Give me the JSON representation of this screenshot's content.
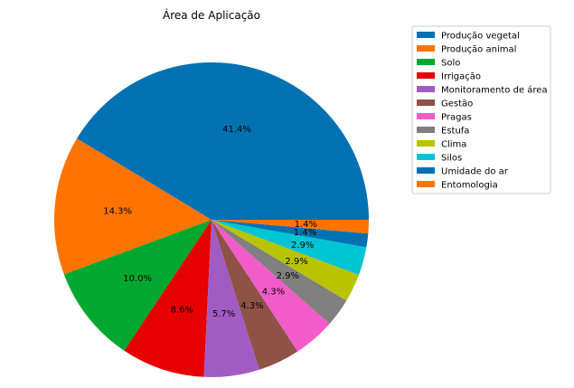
{
  "chart_data": {
    "type": "pie",
    "title": "Área de Aplicação",
    "legend_position": "top-right",
    "start_angle_deg": 0,
    "direction": "counterclockwise-from-right",
    "slices": [
      {
        "label": "Produção vegetal",
        "value": 41.4,
        "pct_label": "41.4%",
        "color": "#0072b2"
      },
      {
        "label": "Produção animal",
        "value": 14.3,
        "pct_label": "14.3%",
        "color": "#ff7400"
      },
      {
        "label": "Solo",
        "value": 10.0,
        "pct_label": "10.0%",
        "color": "#00a830"
      },
      {
        "label": "Irrigação",
        "value": 8.6,
        "pct_label": "8.6%",
        "color": "#e60000"
      },
      {
        "label": "Monitoramento de área",
        "value": 5.7,
        "pct_label": "5.7%",
        "color": "#a15cc4"
      },
      {
        "label": "Gestão",
        "value": 4.3,
        "pct_label": "4.3%",
        "color": "#8e5246"
      },
      {
        "label": "Pragas",
        "value": 4.3,
        "pct_label": "4.3%",
        "color": "#f25cc8"
      },
      {
        "label": "Estufa",
        "value": 2.9,
        "pct_label": "2.9%",
        "color": "#808080"
      },
      {
        "label": "Clima",
        "value": 2.9,
        "pct_label": "2.9%",
        "color": "#b8c400"
      },
      {
        "label": "Silos",
        "value": 2.9,
        "pct_label": "2.9%",
        "color": "#00c4d4"
      },
      {
        "label": "Umidade do ar",
        "value": 1.4,
        "pct_label": "1.4%",
        "color": "#0072b2"
      },
      {
        "label": "Entomologia",
        "value": 1.4,
        "pct_label": "1.4%",
        "color": "#ff7400"
      }
    ]
  }
}
